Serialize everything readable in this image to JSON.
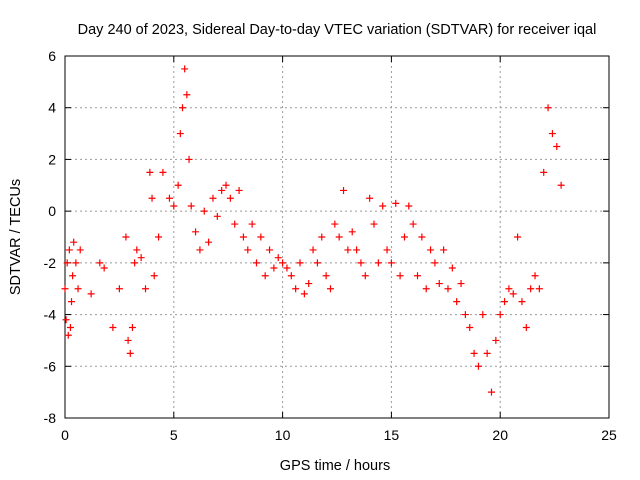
{
  "chart_data": {
    "type": "scatter",
    "title": "Day 240 of 2023, Sidereal Day-to-day VTEC variation (SDTVAR) for receiver iqal",
    "xlabel": "GPS time / hours",
    "ylabel": "SDTVAR / TECUs",
    "xlim": [
      0,
      25
    ],
    "ylim": [
      -8,
      6
    ],
    "xticks": [
      0,
      5,
      10,
      15,
      20,
      25
    ],
    "yticks": [
      -8,
      -6,
      -4,
      -2,
      0,
      2,
      4,
      6
    ],
    "grid": true,
    "marker": "+",
    "color": "#ff0000",
    "series": [
      {
        "name": "SDTVAR",
        "x": [
          0.0,
          0.05,
          0.1,
          0.15,
          0.2,
          0.25,
          0.3,
          0.35,
          0.4,
          0.5,
          0.6,
          0.7,
          1.2,
          1.6,
          1.8,
          2.2,
          2.5,
          2.8,
          2.9,
          3.0,
          3.1,
          3.2,
          3.3,
          3.5,
          3.7,
          3.9,
          4.0,
          4.1,
          4.3,
          4.5,
          4.8,
          5.0,
          5.2,
          5.3,
          5.4,
          5.5,
          5.6,
          5.7,
          5.8,
          6.0,
          6.2,
          6.4,
          6.6,
          6.8,
          7.0,
          7.2,
          7.4,
          7.6,
          7.8,
          8.0,
          8.2,
          8.4,
          8.6,
          8.8,
          9.0,
          9.2,
          9.4,
          9.6,
          9.8,
          10.0,
          10.2,
          10.4,
          10.6,
          10.8,
          11.0,
          11.2,
          11.4,
          11.6,
          11.8,
          12.0,
          12.2,
          12.4,
          12.6,
          12.8,
          13.0,
          13.2,
          13.4,
          13.6,
          13.8,
          14.0,
          14.2,
          14.4,
          14.6,
          14.8,
          15.0,
          15.2,
          15.4,
          15.6,
          15.8,
          16.0,
          16.2,
          16.4,
          16.6,
          16.8,
          17.0,
          17.2,
          17.4,
          17.6,
          17.8,
          18.0,
          18.2,
          18.4,
          18.6,
          18.8,
          19.0,
          19.2,
          19.4,
          19.6,
          19.8,
          20.0,
          20.2,
          20.4,
          20.6,
          20.8,
          21.0,
          21.2,
          21.4,
          21.6,
          21.8,
          22.0,
          22.2,
          22.4,
          22.6,
          22.8
        ],
        "y": [
          -3.0,
          -4.2,
          -2.0,
          -4.8,
          -1.5,
          -4.5,
          -3.5,
          -2.5,
          -1.2,
          -2.0,
          -3.0,
          -1.5,
          -3.2,
          -2.0,
          -2.2,
          -4.5,
          -3.0,
          -1.0,
          -5.0,
          -5.5,
          -4.5,
          -2.0,
          -1.5,
          -1.8,
          -3.0,
          1.5,
          0.5,
          -2.5,
          -1.0,
          1.5,
          0.5,
          0.2,
          1.0,
          3.0,
          4.0,
          5.5,
          4.5,
          2.0,
          0.2,
          -0.8,
          -1.5,
          0.0,
          -1.2,
          0.5,
          -0.2,
          0.8,
          1.0,
          0.5,
          -0.5,
          0.8,
          -1.0,
          -1.5,
          -0.5,
          -2.0,
          -1.0,
          -2.5,
          -1.5,
          -2.2,
          -1.8,
          -2.0,
          -2.2,
          -2.5,
          -3.0,
          -2.0,
          -3.2,
          -2.8,
          -1.5,
          -2.0,
          -1.0,
          -2.5,
          -3.0,
          -0.5,
          -1.0,
          0.8,
          -1.5,
          -0.8,
          -1.5,
          -2.0,
          -2.5,
          0.5,
          -0.5,
          -2.0,
          0.2,
          -1.5,
          -2.0,
          0.3,
          -2.5,
          -1.0,
          0.2,
          -0.5,
          -2.5,
          -1.0,
          -3.0,
          -1.5,
          -2.0,
          -2.8,
          -1.5,
          -3.0,
          -2.2,
          -3.5,
          -2.8,
          -4.0,
          -4.5,
          -5.5,
          -6.0,
          -4.0,
          -5.5,
          -7.0,
          -5.0,
          -4.0,
          -3.5,
          -3.0,
          -3.2,
          -1.0,
          -3.5,
          -4.5,
          -3.0,
          -2.5,
          -3.0,
          1.5,
          4.0,
          3.0,
          2.5,
          1.0
        ]
      }
    ]
  }
}
